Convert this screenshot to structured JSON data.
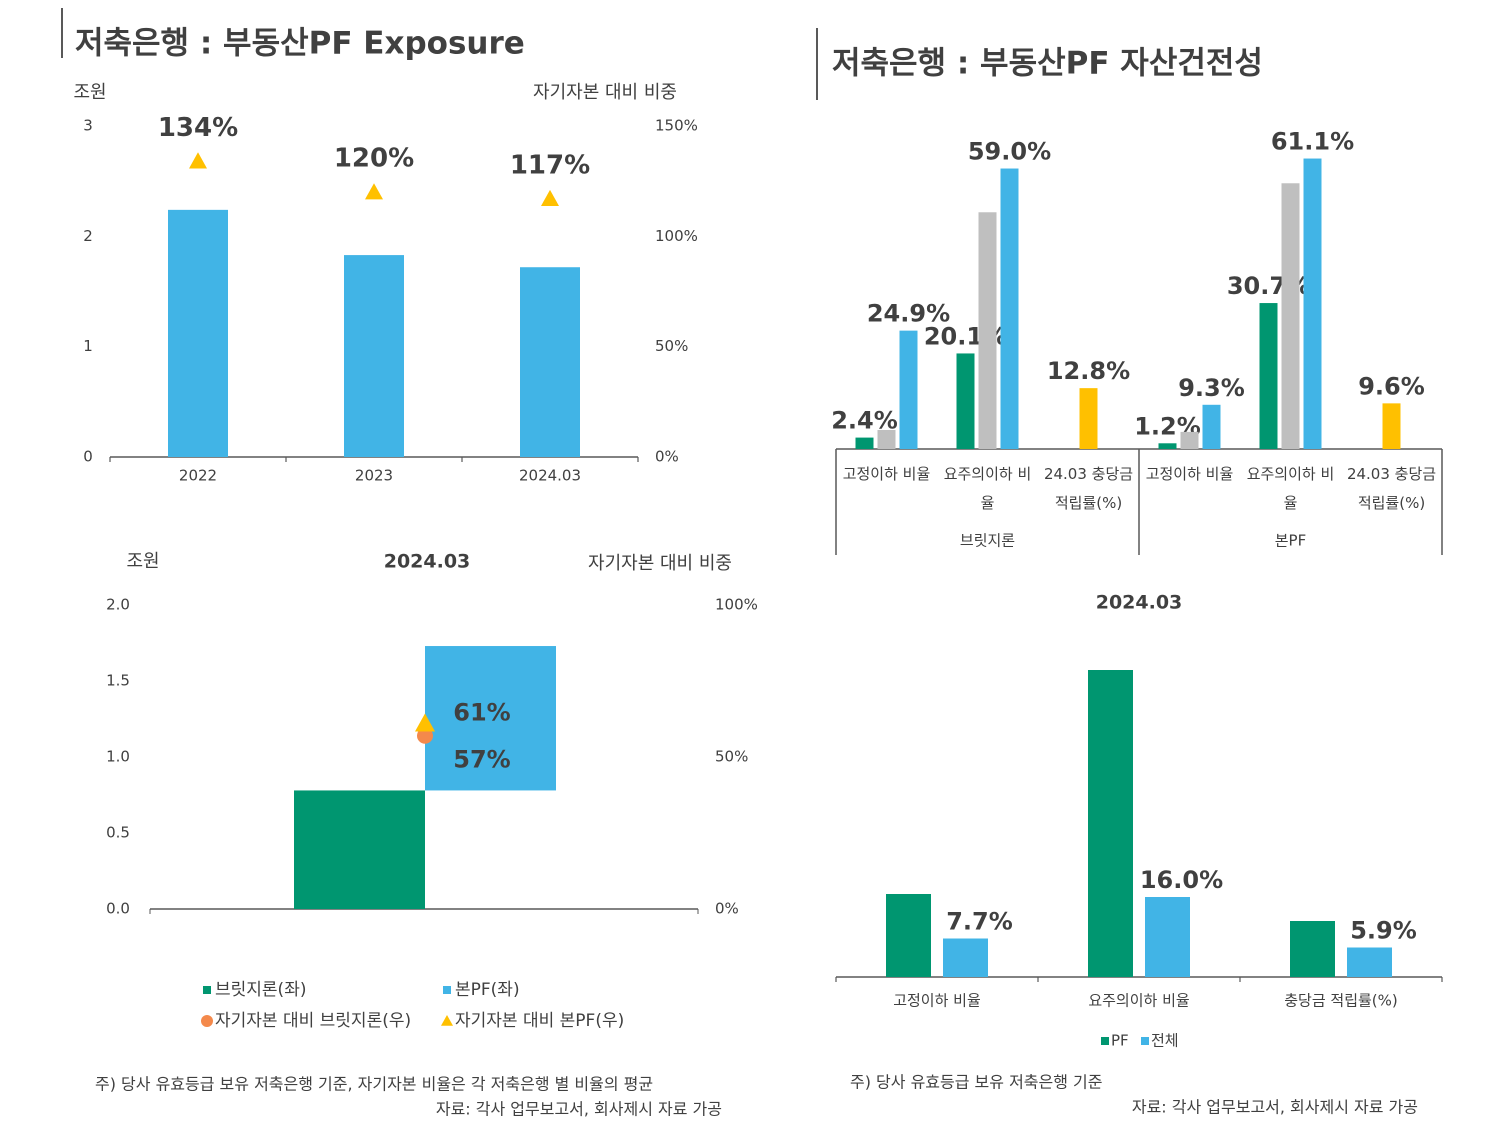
{
  "sections": [
    {
      "title": "저축은행 : 부동산PF Exposure",
      "note": "주) 당사 유효등급 보유 저축은행 기준, 자기자본 비율은 각 저축은행 별 비율의 평균",
      "source": "자료: 각사 업무보고서, 회사제시 자료 가공"
    },
    {
      "title": "저축은행 : 부동산PF 자산건전성",
      "note": "주) 당사 유효등급 보유 저축은행 기준",
      "source": "자료: 각사 업무보고서, 회사제시 자료 가공"
    }
  ],
  "chart_data": [
    {
      "type": "bar",
      "y_label": "조원",
      "y2_label": "자기자본 대비 비중",
      "categories": [
        "2022",
        "2023",
        "2024.03"
      ],
      "series": [
        {
          "color": "#41b4e6",
          "values": [
            2.24,
            1.83,
            1.72
          ]
        },
        {
          "color": "#ffc000",
          "marker": "triangle",
          "axis": "y2",
          "values": [
            134,
            120,
            117
          ],
          "value_labels": [
            "134%",
            "120%",
            "117%"
          ],
          "label_colors": [
            "#404040",
            "#404040",
            "#c00000"
          ]
        }
      ],
      "ylim": [
        0,
        3
      ],
      "yticks": [
        0,
        1,
        2,
        3
      ],
      "y2lim": [
        0,
        150
      ],
      "y2ticks": [
        {
          "value": 0,
          "label": "0%"
        },
        {
          "value": 50,
          "label": "50%"
        },
        {
          "value": 100,
          "label": "100%"
        },
        {
          "value": 150,
          "label": "150%"
        }
      ]
    },
    {
      "type": "bar",
      "categories": [
        "고정이하 비율",
        "요주의이하 비율",
        "24.03 충당금 적립률(%)",
        "고정이하 비율",
        "요주의이하 비율",
        "24.03 충당금 적립률(%)"
      ],
      "groups": [
        "브릿지론",
        "본PF"
      ],
      "series": [
        {
          "color": "#009670",
          "values": [
            2.4,
            20.1,
            null,
            1.2,
            30.7,
            null
          ],
          "value_labels": [
            "2.4%",
            "20.1%",
            null,
            "1.2%",
            "30.7%",
            null
          ]
        },
        {
          "color": "#bfbfbf",
          "values": [
            4.0,
            49.8,
            null,
            3.6,
            55.9,
            null
          ]
        },
        {
          "color": "#41b4e6",
          "values": [
            24.9,
            59.0,
            null,
            9.3,
            61.1,
            null
          ],
          "value_labels": [
            "24.9%",
            "59.0%",
            null,
            "9.3%",
            "61.1%",
            null
          ]
        },
        {
          "color": "#ffc000",
          "values": [
            null,
            null,
            12.8,
            null,
            null,
            9.6
          ],
          "value_labels": [
            null,
            null,
            "12.8%",
            null,
            null,
            "9.6%"
          ],
          "label_color": "#c00000"
        }
      ],
      "ylim": [
        0,
        65
      ]
    },
    {
      "type": "waterfall",
      "title": "2024.03",
      "y_label": "조원",
      "y2_label": "자기자본 대비 비중",
      "series": [
        {
          "name": "브릿지론(좌)",
          "color": "#009670",
          "values": [
            0.78
          ]
        },
        {
          "name": "본PF(좌)",
          "color": "#41b4e6",
          "values": [
            0.95
          ]
        },
        {
          "name": "자기자본 대비 브릿지론(우)",
          "color": "#f4894b",
          "marker": "circle",
          "axis": "y2",
          "values": [
            57
          ],
          "value_labels": [
            "57%"
          ],
          "label_color": "#c00000"
        },
        {
          "name": "자기자본 대비 본PF(우)",
          "color": "#ffc000",
          "marker": "triangle",
          "axis": "y2",
          "values": [
            61
          ],
          "value_labels": [
            "61%"
          ],
          "label_color": "#595959"
        }
      ],
      "ylim": [
        0,
        2
      ],
      "yticks": [
        {
          "value": 0,
          "label": "0.0"
        },
        0.5,
        {
          "value": 1,
          "label": "1.0"
        },
        1.5,
        {
          "value": 2,
          "label": "2.0"
        }
      ],
      "y2lim": [
        0,
        100
      ],
      "y2ticks": [
        {
          "value": 0,
          "label": "0%"
        },
        {
          "value": 50,
          "label": "50%"
        },
        {
          "value": 100,
          "label": "100%"
        }
      ]
    },
    {
      "type": "bar",
      "title": "2024.03",
      "categories": [
        "고정이하 비율",
        "요주의이하 비율",
        "충당금 적립률(%)"
      ],
      "series": [
        {
          "name": "PF",
          "color": "#009670",
          "values": [
            16.6,
            61.4,
            11.2
          ]
        },
        {
          "name": "전체",
          "color": "#41b4e6",
          "values": [
            7.7,
            16.0,
            5.9
          ],
          "value_labels": [
            "7.7%",
            "16.0%",
            "5.9%"
          ]
        }
      ],
      "ylim": [
        0,
        70
      ]
    }
  ]
}
